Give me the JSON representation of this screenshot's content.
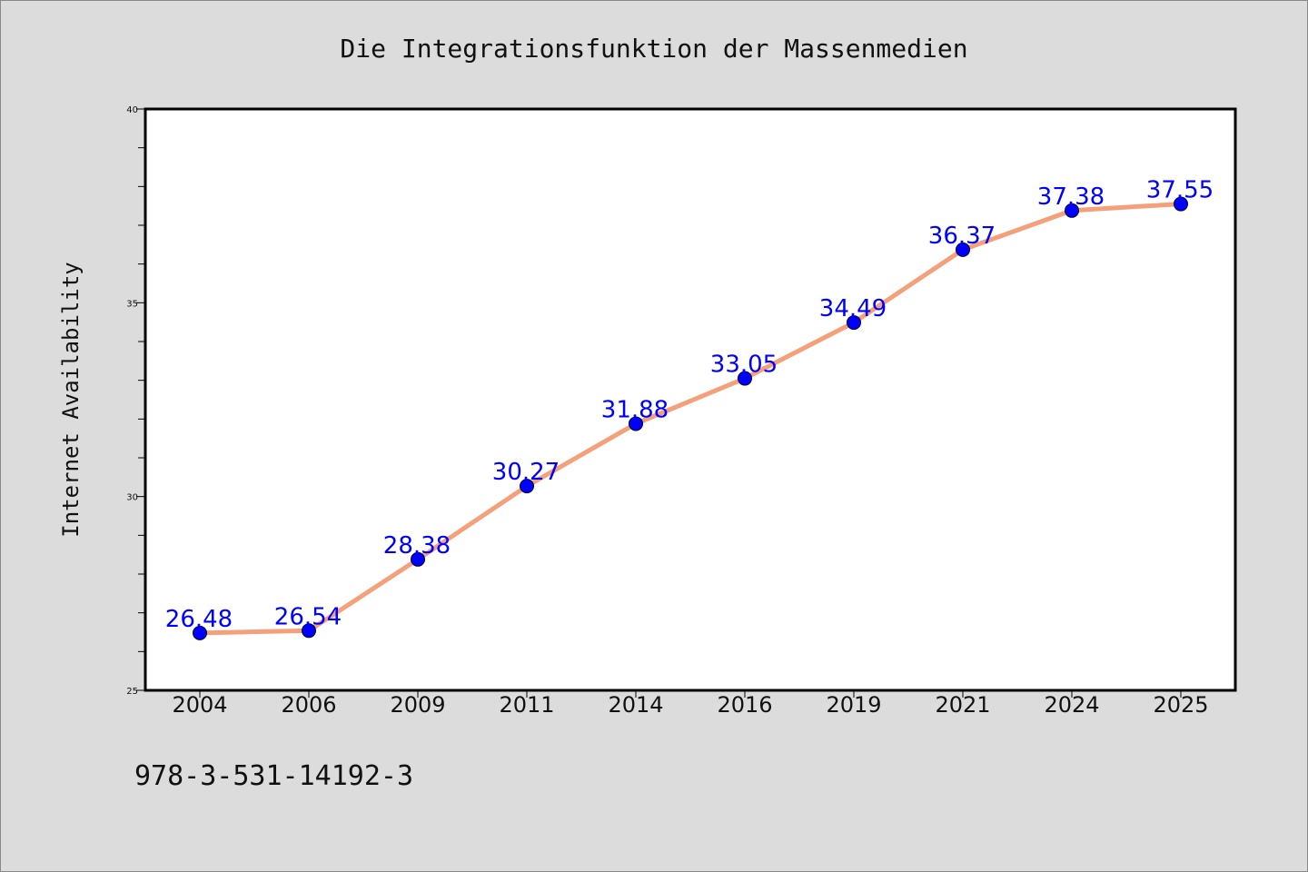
{
  "chart_data": {
    "type": "line",
    "title": "Die Integrationsfunktion der Massenmedien",
    "xlabel": "",
    "ylabel": "Internet Availability",
    "categories": [
      "2004",
      "2006",
      "2009",
      "2011",
      "2014",
      "2016",
      "2019",
      "2021",
      "2024",
      "2025"
    ],
    "series": [
      {
        "values": [
          26.48,
          26.54,
          28.38,
          30.27,
          31.88,
          33.05,
          34.49,
          36.37,
          37.38,
          37.55
        ],
        "data_labels": [
          "26.48",
          "26.54",
          "28.38",
          "30.27",
          "31.88",
          "33.05",
          "34.49",
          "36.37",
          "37.38",
          "37.55"
        ],
        "line_color": "#f4a07a",
        "marker_color": "#0000ff"
      }
    ],
    "ylim": [
      25,
      40
    ],
    "yticks": [
      "25",
      "30",
      "35",
      "40"
    ],
    "grid": false,
    "legend": "none"
  },
  "footer": {
    "isbn": "978-3-531-14192-3"
  }
}
